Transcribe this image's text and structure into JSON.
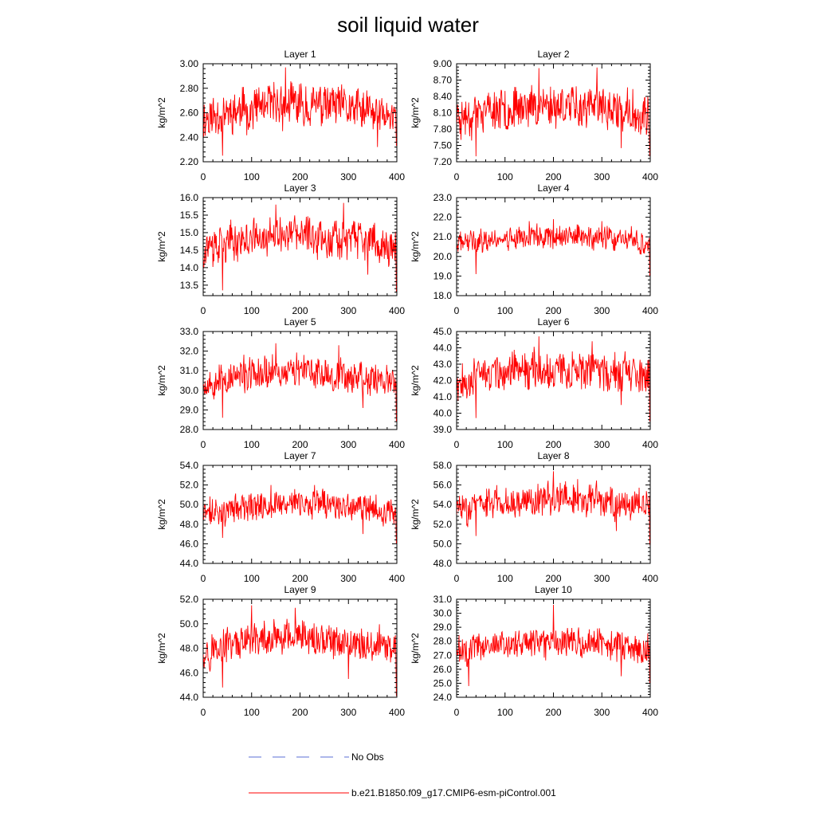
{
  "chart_data": {
    "type": "line",
    "title": "soil liquid water",
    "xlabel": "",
    "ylabel": "kg/m^2",
    "xlim": [
      0,
      400
    ],
    "xticks": [
      0,
      100,
      200,
      300,
      400
    ],
    "n_points": 400,
    "legend": [
      {
        "name": "No Obs",
        "color": "#5b6fd6",
        "style": "dashed"
      },
      {
        "name": "b.e21.B1850.f09_g17.CMIP6-esm-piControl.001",
        "color": "#ff0000",
        "style": "solid"
      }
    ],
    "panels": [
      {
        "title": "Layer 1",
        "ylabel": "kg/m^2",
        "ylim": [
          2.2,
          3.0
        ],
        "yticks": [
          "2.20",
          "2.40",
          "2.60",
          "2.80",
          "3.00"
        ],
        "base": 2.6,
        "amp": 0.12,
        "seed": 11,
        "anchors": [
          [
            0,
            2.5
          ],
          [
            40,
            2.25
          ],
          [
            100,
            2.7
          ],
          [
            135,
            2.8
          ],
          [
            170,
            2.97
          ],
          [
            200,
            2.6
          ],
          [
            300,
            2.55
          ],
          [
            360,
            2.32
          ],
          [
            395,
            2.6
          ],
          [
            399,
            2.33
          ]
        ]
      },
      {
        "title": "Layer 2",
        "ylabel": "kg/m^2",
        "ylim": [
          7.2,
          9.0
        ],
        "yticks": [
          "7.20",
          "7.50",
          "7.80",
          "8.10",
          "8.40",
          "8.70",
          "9.00"
        ],
        "base": 8.1,
        "amp": 0.26,
        "seed": 23,
        "anchors": [
          [
            0,
            7.9
          ],
          [
            40,
            7.3
          ],
          [
            100,
            8.5
          ],
          [
            170,
            8.92
          ],
          [
            200,
            8.3
          ],
          [
            290,
            8.93
          ],
          [
            340,
            7.45
          ],
          [
            395,
            8.4
          ],
          [
            399,
            7.3
          ]
        ]
      },
      {
        "title": "Layer 3",
        "ylabel": "kg/m^2",
        "ylim": [
          13.2,
          16.0
        ],
        "yticks": [
          "13.5",
          "14.0",
          "14.5",
          "15.0",
          "15.5",
          "16.0"
        ],
        "base": 14.7,
        "amp": 0.38,
        "seed": 37,
        "anchors": [
          [
            0,
            14.3
          ],
          [
            40,
            13.35
          ],
          [
            150,
            15.8
          ],
          [
            290,
            15.85
          ],
          [
            340,
            13.8
          ],
          [
            399,
            13.3
          ]
        ]
      },
      {
        "title": "Layer 4",
        "ylabel": "kg/m^2",
        "ylim": [
          18.0,
          23.0
        ],
        "yticks": [
          "18.0",
          "19.0",
          "20.0",
          "21.0",
          "22.0",
          "23.0"
        ],
        "base": 20.8,
        "amp": 0.42,
        "seed": 41,
        "anchors": [
          [
            0,
            20.5
          ],
          [
            40,
            19.1
          ],
          [
            150,
            21.8
          ],
          [
            200,
            21.9
          ],
          [
            300,
            21.8
          ],
          [
            399,
            19.0
          ]
        ]
      },
      {
        "title": "Layer 5",
        "ylabel": "kg/m^2",
        "ylim": [
          28.0,
          33.0
        ],
        "yticks": [
          "28.0",
          "29.0",
          "30.0",
          "31.0",
          "32.0",
          "33.0"
        ],
        "base": 30.6,
        "amp": 0.6,
        "seed": 53,
        "anchors": [
          [
            0,
            30.2
          ],
          [
            40,
            28.6
          ],
          [
            150,
            32.4
          ],
          [
            280,
            32.3
          ],
          [
            330,
            29.1
          ],
          [
            399,
            28.4
          ]
        ]
      },
      {
        "title": "Layer 6",
        "ylabel": "kg/m^2",
        "ylim": [
          39.0,
          45.0
        ],
        "yticks": [
          "39.0",
          "40.0",
          "41.0",
          "42.0",
          "43.0",
          "44.0",
          "45.0"
        ],
        "base": 42.3,
        "amp": 0.8,
        "seed": 67,
        "anchors": [
          [
            0,
            41.5
          ],
          [
            40,
            39.7
          ],
          [
            170,
            44.7
          ],
          [
            280,
            44.4
          ],
          [
            340,
            40.5
          ],
          [
            399,
            39.5
          ]
        ]
      },
      {
        "title": "Layer 7",
        "ylabel": "kg/m^2",
        "ylim": [
          44.0,
          54.0
        ],
        "yticks": [
          "44.0",
          "46.0",
          "48.0",
          "50.0",
          "52.0",
          "54.0"
        ],
        "base": 49.5,
        "amp": 1.0,
        "seed": 71,
        "anchors": [
          [
            0,
            48.5
          ],
          [
            40,
            46.6
          ],
          [
            140,
            52.0
          ],
          [
            230,
            52.0
          ],
          [
            330,
            47.0
          ],
          [
            399,
            46.0
          ]
        ]
      },
      {
        "title": "Layer 8",
        "ylabel": "kg/m^2",
        "ylim": [
          48.0,
          58.0
        ],
        "yticks": [
          "48.0",
          "50.0",
          "52.0",
          "54.0",
          "56.0",
          "58.0"
        ],
        "base": 54.0,
        "amp": 1.1,
        "seed": 83,
        "anchors": [
          [
            0,
            53.0
          ],
          [
            40,
            50.8
          ],
          [
            200,
            57.4
          ],
          [
            250,
            56.6
          ],
          [
            330,
            51.3
          ],
          [
            399,
            49.9
          ]
        ]
      },
      {
        "title": "Layer 9",
        "ylabel": "kg/m^2",
        "ylim": [
          44.0,
          52.0
        ],
        "yticks": [
          "44.0",
          "46.0",
          "48.0",
          "50.0",
          "52.0"
        ],
        "base": 48.2,
        "amp": 1.0,
        "seed": 97,
        "anchors": [
          [
            0,
            47.5
          ],
          [
            40,
            44.8
          ],
          [
            100,
            51.5
          ],
          [
            190,
            51.3
          ],
          [
            300,
            45.5
          ],
          [
            399,
            44.1
          ]
        ]
      },
      {
        "title": "Layer 10",
        "ylabel": "kg/m^2",
        "ylim": [
          24.0,
          31.0
        ],
        "yticks": [
          "24.0",
          "25.0",
          "26.0",
          "27.0",
          "28.0",
          "29.0",
          "30.0",
          "31.0"
        ],
        "base": 27.6,
        "amp": 0.75,
        "seed": 101,
        "anchors": [
          [
            0,
            27.0
          ],
          [
            25,
            24.8
          ],
          [
            200,
            30.6
          ],
          [
            340,
            25.5
          ],
          [
            399,
            25.0
          ]
        ]
      }
    ]
  }
}
